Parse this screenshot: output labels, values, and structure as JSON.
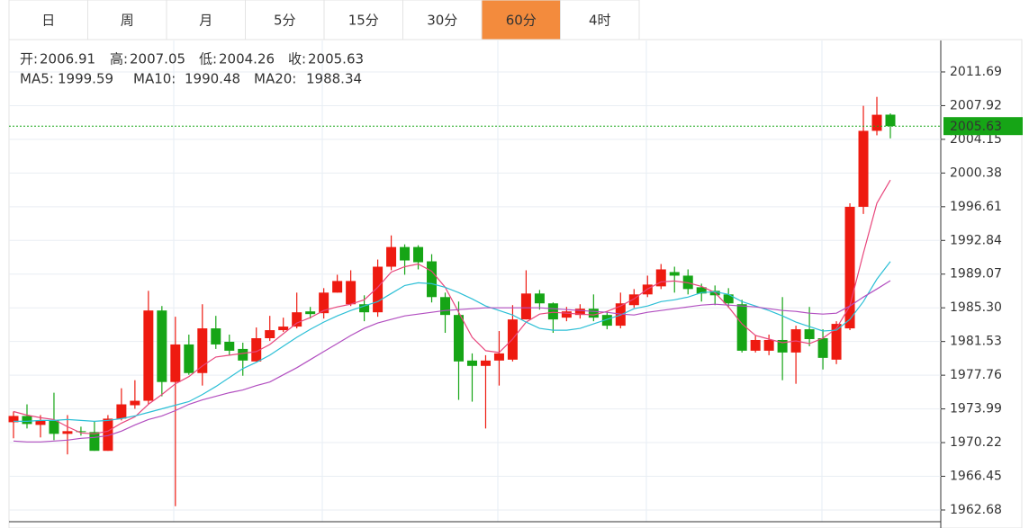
{
  "tabs": [
    "日",
    "周",
    "月",
    "5分",
    "15分",
    "30分",
    "60分",
    "4时"
  ],
  "active_tab": "60分",
  "chart_data": {
    "type": "candlestick",
    "ohlc_labels": [
      "开:",
      "高:",
      "低:",
      "收:"
    ],
    "up_color": "#ee1a10",
    "down_color": "#16a516",
    "open": [
      1972.5,
      1973.2,
      1972.2,
      1972.7,
      1971.2,
      1971.5,
      1971.4,
      1969.3,
      1972.9,
      1974.4,
      1974.9,
      1985.0,
      1977.0,
      1981.2,
      1978.0,
      1983.0,
      1981.5,
      1980.7,
      1979.3,
      1981.9,
      1982.8,
      1983.2,
      1984.9,
      1984.7,
      1987.0,
      1985.7,
      1985.7,
      1984.8,
      1989.9,
      1992.1,
      1992.1,
      1990.5,
      1986.5,
      1984.5,
      1979.4,
      1978.8,
      1979.4,
      1979.5,
      1984.0,
      1986.9,
      1985.8,
      1984.2,
      1984.5,
      1985.2,
      1984.5,
      1983.3,
      1985.6,
      1986.8,
      1987.7,
      1989.3,
      1988.9,
      1987.6,
      1987.2,
      1986.8,
      1985.7,
      1980.5,
      1980.5,
      1981.7,
      1980.3,
      1982.9,
      1981.9,
      1979.5,
      1983.0,
      1996.6,
      2005.1,
      2006.91
    ],
    "high": [
      1973.7,
      1974.5,
      1973.3,
      1975.8,
      1973.3,
      1972.0,
      1972.6,
      1973.3,
      1976.3,
      1977.2,
      1987.2,
      1985.5,
      1984.3,
      1982.3,
      1985.7,
      1984.4,
      1982.3,
      1981.4,
      1983.1,
      1984.4,
      1984.2,
      1987.0,
      1985.4,
      1987.5,
      1989.0,
      1989.5,
      1986.7,
      1990.7,
      1993.4,
      1992.4,
      1992.3,
      1991.3,
      1987.0,
      1986.0,
      1980.2,
      1980.0,
      1982.7,
      1985.6,
      1989.5,
      1987.3,
      1985.9,
      1985.4,
      1985.7,
      1986.8,
      1984.9,
      1987.0,
      1987.4,
      1988.9,
      1990.2,
      1989.9,
      1989.6,
      1988.0,
      1987.8,
      1987.5,
      1986.2,
      1982.2,
      1982.3,
      1986.5,
      1983.3,
      1985.4,
      1982.9,
      1983.8,
      1997.0,
      2007.9,
      2008.9,
      2007.05
    ],
    "low": [
      1970.7,
      1971.8,
      1970.8,
      1970.5,
      1968.9,
      1971.0,
      1969.3,
      1969.3,
      1972.7,
      1974.0,
      1974.5,
      1975.4,
      1963.1,
      1977.8,
      1976.6,
      1980.7,
      1980.0,
      1977.7,
      1979.3,
      1981.6,
      1982.6,
      1983.0,
      1984.1,
      1984.1,
      1987.0,
      1985.5,
      1983.8,
      1984.3,
      1989.5,
      1989.0,
      1989.6,
      1985.9,
      1982.5,
      1975.0,
      1974.8,
      1971.8,
      1976.6,
      1979.3,
      1984.0,
      1985.1,
      1982.5,
      1983.8,
      1984.1,
      1983.8,
      1982.9,
      1983.0,
      1985.3,
      1986.5,
      1987.4,
      1987.0,
      1986.8,
      1986.0,
      1985.6,
      1985.3,
      1980.3,
      1980.3,
      1980.0,
      1977.2,
      1976.8,
      1981.0,
      1978.4,
      1979.0,
      1982.8,
      1995.8,
      2004.6,
      2004.26
    ],
    "close": [
      1973.2,
      1972.3,
      1972.7,
      1971.2,
      1971.5,
      1971.4,
      1969.3,
      1972.9,
      1974.5,
      1974.9,
      1985.0,
      1977.0,
      1981.2,
      1978.0,
      1983.0,
      1981.2,
      1980.5,
      1979.4,
      1981.9,
      1982.8,
      1983.2,
      1984.8,
      1984.6,
      1987.0,
      1988.3,
      1988.3,
      1984.8,
      1989.9,
      1992.1,
      1990.6,
      1990.4,
      1986.5,
      1984.5,
      1979.3,
      1978.8,
      1979.4,
      1980.2,
      1984.0,
      1986.9,
      1985.8,
      1984.0,
      1984.9,
      1985.2,
      1984.2,
      1983.3,
      1985.8,
      1986.8,
      1987.9,
      1989.6,
      1988.9,
      1987.4,
      1986.9,
      1986.7,
      1985.8,
      1980.5,
      1981.7,
      1981.7,
      1980.3,
      1982.9,
      1981.8,
      1979.7,
      1983.5,
      1996.6,
      2005.1,
      2006.9,
      2005.63
    ],
    "series": [
      {
        "name": "MA5:",
        "color": "#e8467c",
        "values": [
          1973.7,
          1973.3,
          1973.0,
          1972.8,
          1972.0,
          1971.3,
          1971.2,
          1971.5,
          1972.4,
          1973.1,
          1974.5,
          1975.6,
          1976.8,
          1977.6,
          1978.8,
          1979.8,
          1980.0,
          1980.2,
          1980.4,
          1981.2,
          1982.4,
          1983.6,
          1984.2,
          1985.0,
          1985.4,
          1985.7,
          1986.2,
          1987.6,
          1989.3,
          1989.9,
          1990.2,
          1989.4,
          1987.6,
          1984.8,
          1982.0,
          1980.5,
          1980.3,
          1981.8,
          1983.7,
          1984.6,
          1984.8,
          1984.7,
          1984.6,
          1984.5,
          1984.9,
          1985.5,
          1986.3,
          1987.4,
          1988.2,
          1988.3,
          1988.1,
          1987.7,
          1987.0,
          1985.4,
          1983.5,
          1982.2,
          1981.8,
          1981.4,
          1981.6,
          1981.3,
          1981.9,
          1983.0,
          1985.5,
          1991.4,
          1997.0,
          1999.59
        ]
      },
      {
        "name": "MA10:",
        "color": "#2cbfd6",
        "values": [
          1972.6,
          1972.6,
          1972.7,
          1972.7,
          1972.8,
          1972.7,
          1972.6,
          1972.7,
          1972.9,
          1973.2,
          1973.6,
          1974.0,
          1974.4,
          1974.8,
          1975.6,
          1976.5,
          1977.5,
          1978.5,
          1979.2,
          1980.0,
          1981.0,
          1982.0,
          1982.9,
          1983.7,
          1984.4,
          1985.0,
          1985.5,
          1986.0,
          1986.9,
          1987.8,
          1988.1,
          1988.0,
          1987.6,
          1987.0,
          1986.3,
          1985.5,
          1985.0,
          1984.5,
          1983.7,
          1983.0,
          1982.8,
          1982.8,
          1983.0,
          1983.5,
          1984.0,
          1984.5,
          1985.2,
          1985.5,
          1986.0,
          1986.2,
          1986.5,
          1987.0,
          1987.1,
          1986.8,
          1986.0,
          1985.5,
          1985.0,
          1984.4,
          1983.7,
          1983.2,
          1982.7,
          1982.8,
          1984.0,
          1986.0,
          1988.5,
          1990.48
        ]
      },
      {
        "name": "MA20:",
        "color": "#b24fc0",
        "values": [
          1970.4,
          1970.3,
          1970.3,
          1970.4,
          1970.5,
          1970.7,
          1970.8,
          1971.0,
          1971.5,
          1972.2,
          1972.8,
          1973.2,
          1973.8,
          1974.5,
          1975.0,
          1975.4,
          1975.8,
          1976.1,
          1976.6,
          1977.0,
          1977.8,
          1978.6,
          1979.5,
          1980.4,
          1981.3,
          1982.2,
          1983.0,
          1983.6,
          1984.0,
          1984.4,
          1984.6,
          1984.8,
          1985.0,
          1985.1,
          1985.2,
          1985.3,
          1985.3,
          1985.3,
          1985.3,
          1985.3,
          1985.2,
          1985.1,
          1985.0,
          1984.9,
          1984.8,
          1984.6,
          1984.5,
          1984.8,
          1985.0,
          1985.2,
          1985.4,
          1985.6,
          1985.7,
          1985.6,
          1985.5,
          1985.4,
          1985.2,
          1985.0,
          1984.9,
          1984.7,
          1984.6,
          1984.7,
          1985.5,
          1986.5,
          1987.4,
          1988.34
        ]
      }
    ],
    "ylim": [
      1961.37,
      2015.21
    ],
    "yticks": [
      2011.69,
      2007.92,
      2004.15,
      2000.38,
      1996.61,
      1992.84,
      1989.07,
      {
        "value": 1985.3,
        "label": "1985.30"
      },
      1981.53,
      1977.76,
      1973.99,
      1970.22,
      1966.45,
      1962.68
    ],
    "grid": true
  }
}
